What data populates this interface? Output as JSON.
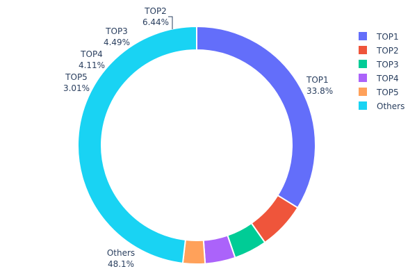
{
  "chart_data": {
    "type": "pie",
    "hole": true,
    "direction": "clockwise",
    "labels": [
      "TOP1",
      "TOP2",
      "TOP3",
      "TOP4",
      "TOP5",
      "Others"
    ],
    "values": [
      33.8,
      6.44,
      4.49,
      4.11,
      3.01,
      48.1
    ],
    "value_texts": [
      "33.8%",
      "6.44%",
      "4.49%",
      "4.11%",
      "3.01%",
      "48.1%"
    ],
    "colors": [
      "#636efa",
      "#ef553b",
      "#00cc96",
      "#ab63fa",
      "#ffa15a",
      "#19d3f3"
    ],
    "legend_position": "top-right",
    "title": ""
  }
}
